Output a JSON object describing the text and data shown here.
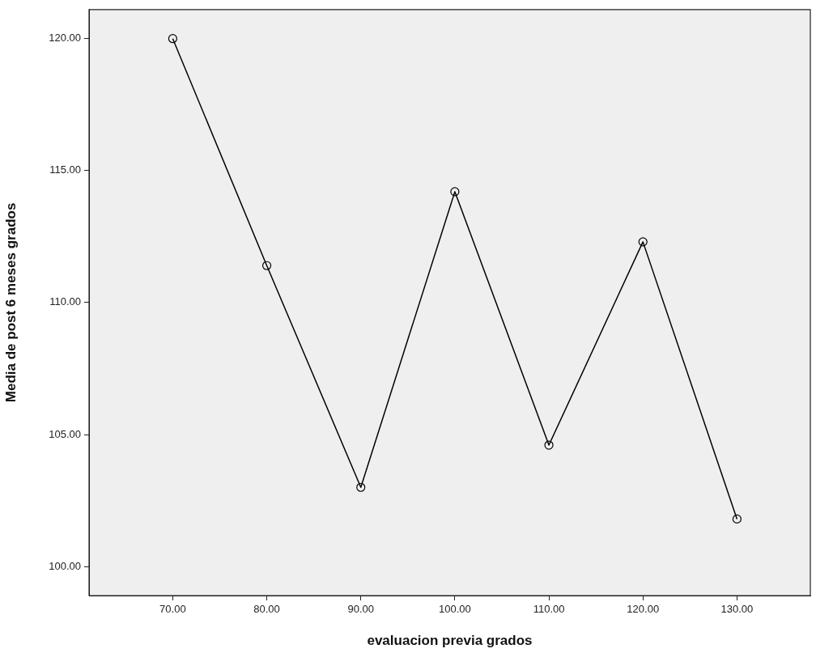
{
  "chart_data": {
    "type": "line",
    "xlabel": "evaluacion previa grados",
    "ylabel": "Media de post 6 meses grados",
    "x": [
      70,
      80,
      90,
      100,
      110,
      120,
      130
    ],
    "series": [
      {
        "color": "#000000",
        "values": [
          120.0,
          111.4,
          103.0,
          114.2,
          104.6,
          112.3,
          101.8
        ]
      }
    ],
    "xlim": [
      61.1,
      137.8
    ],
    "ylim": [
      98.9,
      121.1
    ],
    "xticks": [
      {
        "value": 70,
        "label": "70.00"
      },
      {
        "value": 80,
        "label": "80.00"
      },
      {
        "value": 90,
        "label": "90.00"
      },
      {
        "value": 100,
        "label": "100.00"
      },
      {
        "value": 110,
        "label": "110.00"
      },
      {
        "value": 120,
        "label": "120.00"
      },
      {
        "value": 130,
        "label": "130.00"
      }
    ],
    "yticks": [
      {
        "value": 100,
        "label": "100.00"
      },
      {
        "value": 105,
        "label": "105.00"
      },
      {
        "value": 110,
        "label": "110.00"
      },
      {
        "value": 115,
        "label": "115.00"
      },
      {
        "value": 120,
        "label": "120.00"
      }
    ],
    "grid": false,
    "legend": false,
    "marker": "circle",
    "line_style": "solid"
  }
}
